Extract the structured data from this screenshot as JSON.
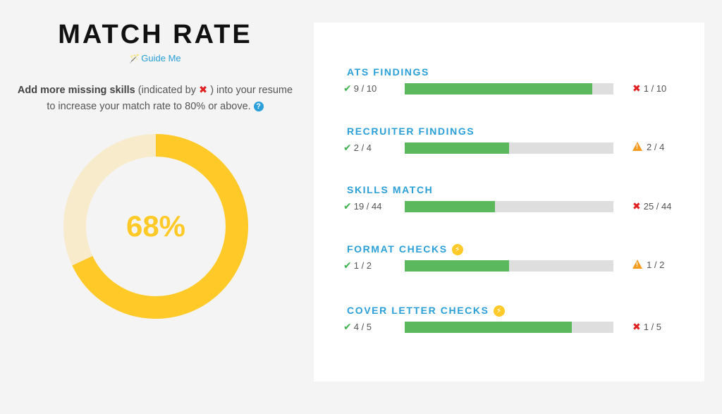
{
  "header": {
    "title": "MATCH RATE",
    "guide_label": "Guide Me",
    "guide_icon": "magic-wand-icon"
  },
  "description": {
    "bold": "Add more missing skills",
    "pre_icon": " (indicated by ",
    "post_icon": " ) into your resume to increase your match rate to 80% or above.",
    "fail_icon": "x-icon",
    "help_icon": "question-icon"
  },
  "match": {
    "value": 68,
    "label": "68%",
    "colors": {
      "fill": "#ffc928",
      "track": "#f8ebcb"
    }
  },
  "sections": [
    {
      "id": "ats",
      "title": "ATS FINDINGS",
      "bolt": false,
      "pass": "9 / 10",
      "fail": "1 / 10",
      "fail_type": "x",
      "progress": 0.9
    },
    {
      "id": "recruiter",
      "title": "RECRUITER FINDINGS",
      "bolt": false,
      "pass": "2 / 4",
      "fail": "2 / 4",
      "fail_type": "warning",
      "progress": 0.5
    },
    {
      "id": "skills",
      "title": "SKILLS MATCH",
      "bolt": false,
      "pass": "19 / 44",
      "fail": "25 / 44",
      "fail_type": "x",
      "progress": 0.432
    },
    {
      "id": "format",
      "title": "FORMAT CHECKS",
      "bolt": true,
      "pass": "1 / 2",
      "fail": "1 / 2",
      "fail_type": "warning",
      "progress": 0.5
    },
    {
      "id": "cover",
      "title": "COVER LETTER CHECKS",
      "bolt": true,
      "pass": "4 / 5",
      "fail": "1 / 5",
      "fail_type": "x",
      "progress": 0.8
    }
  ],
  "colors": {
    "accent": "#2a9fd8",
    "pass": "#5cb85c",
    "fail": "#e02020",
    "warning": "#f39a1f",
    "bolt": "#ffc928"
  }
}
